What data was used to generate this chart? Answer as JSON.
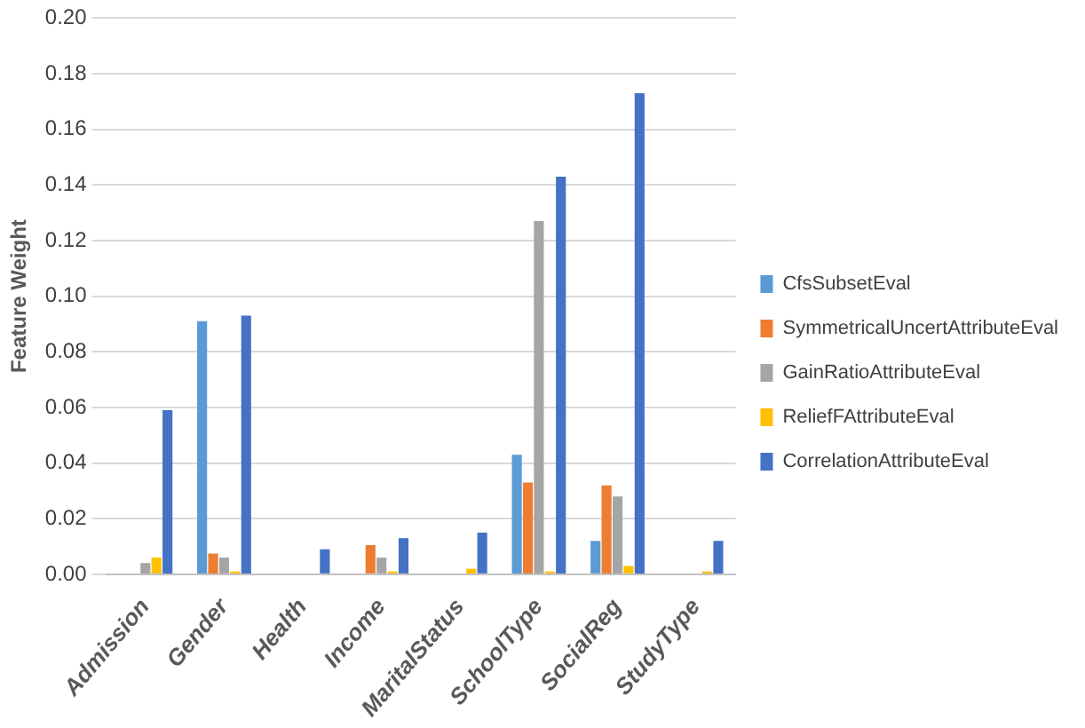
{
  "chart_data": {
    "type": "bar",
    "ylabel": "Feature Weight",
    "categories": [
      "Admission",
      "Gender",
      "Health",
      "Income",
      "MaritalStatus",
      "SchoolType",
      "SocialReg",
      "StudyType"
    ],
    "series": [
      {
        "name": "CfsSubsetEval",
        "color": "#5b9bd5",
        "values": [
          0,
          0.091,
          0,
          0,
          0,
          0.043,
          0.012,
          0
        ]
      },
      {
        "name": "SymmetricalUncertAttributeEval",
        "color": "#ed7d31",
        "values": [
          0,
          0.0075,
          0,
          0.0105,
          0,
          0.033,
          0.032,
          0
        ]
      },
      {
        "name": "GainRatioAttributeEval",
        "color": "#a5a5a5",
        "values": [
          0.004,
          0.006,
          0,
          0.006,
          0,
          0.127,
          0.028,
          0
        ]
      },
      {
        "name": "ReliefFAttributeEval",
        "color": "#ffc000",
        "values": [
          0.006,
          0.001,
          0,
          0.001,
          0.002,
          0.001,
          0.003,
          0.001
        ]
      },
      {
        "name": "CorrelationAttributeEval",
        "color": "#4472c4",
        "values": [
          0.059,
          0.093,
          0.009,
          0.013,
          0.015,
          0.143,
          0.173,
          0.012
        ]
      }
    ],
    "ylim": [
      0,
      0.2
    ],
    "yticks": [
      {
        "value": 0,
        "label": "0.00"
      },
      {
        "value": 0.02,
        "label": "0.02"
      },
      {
        "value": 0.04,
        "label": "0.04"
      },
      {
        "value": 0.06,
        "label": "0.06"
      },
      {
        "value": 0.08,
        "label": "0.08"
      },
      {
        "value": 0.1,
        "label": "0.10"
      },
      {
        "value": 0.12,
        "label": "0.12"
      },
      {
        "value": 0.14,
        "label": "0.14"
      },
      {
        "value": 0.16,
        "label": "0.16"
      },
      {
        "value": 0.18,
        "label": "0.18"
      },
      {
        "value": 0.2,
        "label": "0.20"
      }
    ],
    "grid": "y",
    "legend": "right"
  }
}
